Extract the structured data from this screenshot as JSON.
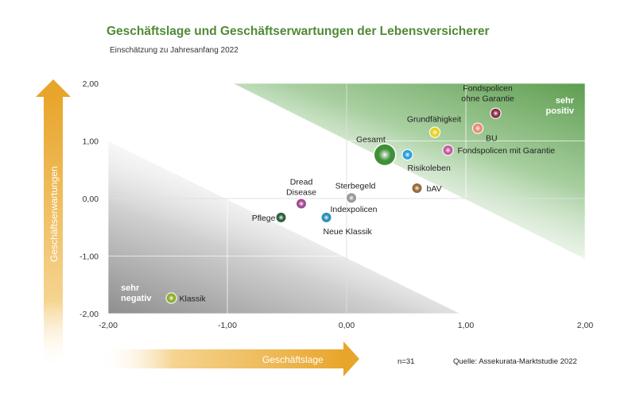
{
  "title": "Geschäftslage und Geschäftserwartungen der Lebensversicherer",
  "subtitle": "Einschätzung zu Jahresanfang 2022",
  "footer": {
    "n": "n=31",
    "source": "Quelle: Assekurata-Marktstudie 2022"
  },
  "colors": {
    "title": "#4f8a35",
    "arrow": "#e8a52b",
    "positive_area": "#5e9e50",
    "negative_area": "#9a9a9a"
  },
  "chart_data": {
    "type": "scatter",
    "xlabel": "Geschäftslage",
    "ylabel": "Geschäftserwartungen",
    "xlim": [
      -2,
      2
    ],
    "ylim": [
      -2,
      2
    ],
    "xticks": [
      "-2,00",
      "-1,00",
      "0,00",
      "1,00",
      "2,00"
    ],
    "yticks": [
      "2,00",
      "1,00",
      "0,00",
      "-1,00",
      "-2,00"
    ],
    "corner_labels": {
      "positive": [
        "sehr",
        "positiv"
      ],
      "negative": [
        "sehr",
        "negativ"
      ]
    },
    "points": [
      {
        "label": [
          "Gesamt"
        ],
        "x": 0.32,
        "y": 0.76,
        "color": "#3f8f37",
        "size": "large"
      },
      {
        "label": [
          "Fondspolicen",
          "ohne Garantie"
        ],
        "x": 1.25,
        "y": 1.48,
        "color": "#8a2f46",
        "size": "normal"
      },
      {
        "label": [
          "BU"
        ],
        "x": 1.1,
        "y": 1.22,
        "color": "#ea8b78",
        "size": "normal"
      },
      {
        "label": [
          "Grundfähigkeit"
        ],
        "x": 0.74,
        "y": 1.15,
        "color": "#e8d21d",
        "size": "normal"
      },
      {
        "label": [
          "Fondspolicen mit Garantie"
        ],
        "x": 0.85,
        "y": 0.84,
        "color": "#c65aa0",
        "size": "normal"
      },
      {
        "label": [
          "Risikoleben"
        ],
        "x": 0.51,
        "y": 0.76,
        "color": "#2a9ee0",
        "size": "normal"
      },
      {
        "label": [
          "bAV"
        ],
        "x": 0.59,
        "y": 0.18,
        "color": "#9a6a3a",
        "size": "normal"
      },
      {
        "label": [
          "Sterbegeld"
        ],
        "x": 0.04,
        "y": 0.01,
        "color": "#999999",
        "size": "normal"
      },
      {
        "label": [
          "Dread",
          "Disease"
        ],
        "x": -0.38,
        "y": -0.09,
        "color": "#a04a93",
        "size": "normal"
      },
      {
        "label": [
          "Indexpolicen"
        ],
        "x": -0.17,
        "y": -0.33,
        "color": "#2a8fb5",
        "size": "normal"
      },
      {
        "label": [
          "Neue Klassik"
        ],
        "x": -0.17,
        "y": -0.33,
        "color": "#2a8fb5",
        "size": "none"
      },
      {
        "label": [
          "Pflege"
        ],
        "x": -0.55,
        "y": -0.33,
        "color": "#2f5f3a",
        "size": "normal"
      },
      {
        "label": [
          "Klassik"
        ],
        "x": -1.47,
        "y": -1.73,
        "color": "#8fae2a",
        "size": "normal"
      }
    ]
  }
}
